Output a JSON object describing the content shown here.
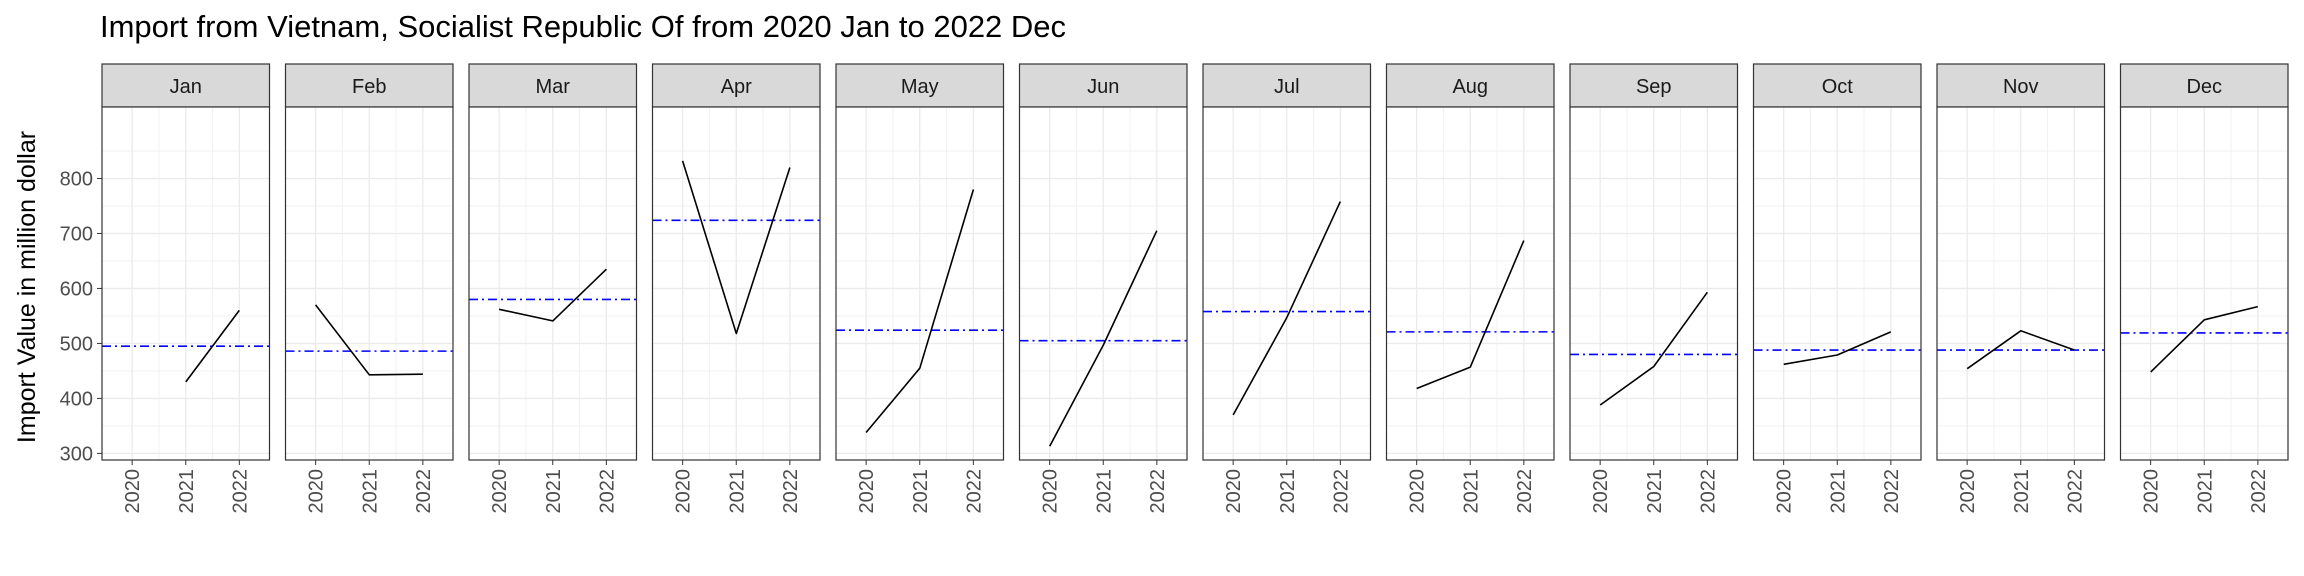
{
  "chart_data": {
    "type": "line",
    "title": "Import from Vietnam, Socialist Republic Of from 2020 Jan to 2022 Dec",
    "xlabel": "",
    "ylabel": "Import Value in million dollar",
    "ylim": [
      288,
      930
    ],
    "yticks": [
      300,
      400,
      500,
      600,
      700,
      800
    ],
    "xticks": [
      "2020",
      "2021",
      "2022"
    ],
    "grid": true,
    "series_color": "#000000",
    "mean_line_color": "#0000ff",
    "panels": [
      {
        "month": "Jan",
        "x": [
          "2021",
          "2022"
        ],
        "values": [
          430,
          560
        ],
        "mean": 495
      },
      {
        "month": "Feb",
        "x": [
          "2020",
          "2021",
          "2022"
        ],
        "values": [
          570,
          443,
          444
        ],
        "mean": 486
      },
      {
        "month": "Mar",
        "x": [
          "2020",
          "2021",
          "2022"
        ],
        "values": [
          562,
          541,
          635
        ],
        "mean": 580
      },
      {
        "month": "Apr",
        "x": [
          "2020",
          "2021",
          "2022"
        ],
        "values": [
          832,
          518,
          820
        ],
        "mean": 724
      },
      {
        "month": "May",
        "x": [
          "2020",
          "2021",
          "2022"
        ],
        "values": [
          338,
          455,
          780
        ],
        "mean": 524
      },
      {
        "month": "Jun",
        "x": [
          "2020",
          "2021",
          "2022"
        ],
        "values": [
          313,
          497,
          705
        ],
        "mean": 505
      },
      {
        "month": "Jul",
        "x": [
          "2020",
          "2021",
          "2022"
        ],
        "values": [
          370,
          547,
          758
        ],
        "mean": 558
      },
      {
        "month": "Aug",
        "x": [
          "2020",
          "2021",
          "2022"
        ],
        "values": [
          418,
          457,
          687
        ],
        "mean": 521
      },
      {
        "month": "Sep",
        "x": [
          "2020",
          "2021",
          "2022"
        ],
        "values": [
          388,
          458,
          593
        ],
        "mean": 480
      },
      {
        "month": "Oct",
        "x": [
          "2020",
          "2021",
          "2022"
        ],
        "values": [
          462,
          479,
          521
        ],
        "mean": 488
      },
      {
        "month": "Nov",
        "x": [
          "2020",
          "2021",
          "2022"
        ],
        "values": [
          454,
          523,
          488
        ],
        "mean": 488
      },
      {
        "month": "Dec",
        "x": [
          "2020",
          "2021",
          "2022"
        ],
        "values": [
          448,
          543,
          567
        ],
        "mean": 519
      }
    ]
  }
}
